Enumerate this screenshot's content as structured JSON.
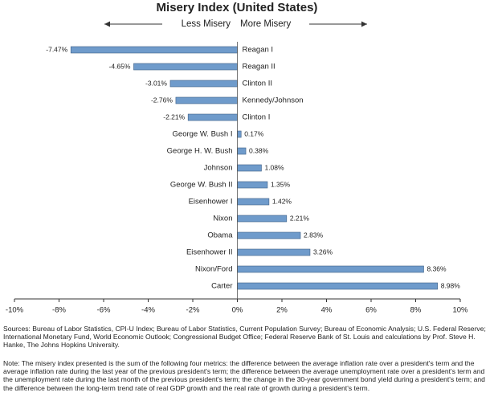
{
  "chart_data": {
    "type": "hbar",
    "title": "Misery Index (United States)",
    "annotations": [
      "Less Misery",
      "More Misery"
    ],
    "categories": [
      "Reagan I",
      "Reagan II",
      "Clinton II",
      "Kennedy/Johnson",
      "Clinton I",
      "George W. Bush I",
      "George H. W. Bush",
      "Johnson",
      "George W. Bush II",
      "Eisenhower I",
      "Nixon",
      "Obama",
      "Eisenhower II",
      "Nixon/Ford",
      "Carter"
    ],
    "values": [
      -7.47,
      -4.65,
      -3.01,
      -2.76,
      -2.21,
      0.17,
      0.38,
      1.08,
      1.35,
      1.42,
      2.21,
      2.83,
      3.26,
      8.36,
      8.98
    ],
    "value_labels": [
      "-7.47%",
      "-4.65%",
      "-3.01%",
      "-2.76%",
      "-2.21%",
      "0.17%",
      "0.38%",
      "1.08%",
      "1.35%",
      "1.42%",
      "2.21%",
      "2.83%",
      "3.26%",
      "8.36%",
      "8.98%"
    ],
    "color": "#6f9bcb",
    "xlim": [
      -10,
      10
    ],
    "xticks": [
      {
        "value": -10,
        "label": "-10%"
      },
      {
        "value": -8,
        "label": "-8%"
      },
      {
        "value": -6,
        "label": "-6%"
      },
      {
        "value": -4,
        "label": "-4%"
      },
      {
        "value": -2,
        "label": "-2%"
      },
      {
        "value": 0,
        "label": "0%"
      },
      {
        "value": 2,
        "label": "2%"
      },
      {
        "value": 4,
        "label": "4%"
      },
      {
        "value": 6,
        "label": "6%"
      },
      {
        "value": 8,
        "label": "8%"
      },
      {
        "value": 10,
        "label": "10%"
      }
    ],
    "sources": "Sources: Bureau of Labor Statistics, CPI-U Index; Bureau of Labor Statistics, Current Population Survey; Bureau of Economic Analysis; U.S. Federal Reserve; International Monetary Fund, World Economic Outlook; Congressional Budget Office; Federal Reserve Bank of St. Louis and calculations by Prof. Steve H. Hanke, The Johns Hopkins University.",
    "note": "Note: The misery index presented is the sum of the following four metrics: the difference between the average inflation rate over a president's term and the average inflation rate during the last year of the previous president's term; the difference between the average unemployment rate over a president's term and the unemployment rate during the last month of the previous president's term; the change in the 30-year government bond yield during a president's term; and the difference between the long-term trend rate of real GDP growth and the real rate of growth during a president's term."
  }
}
